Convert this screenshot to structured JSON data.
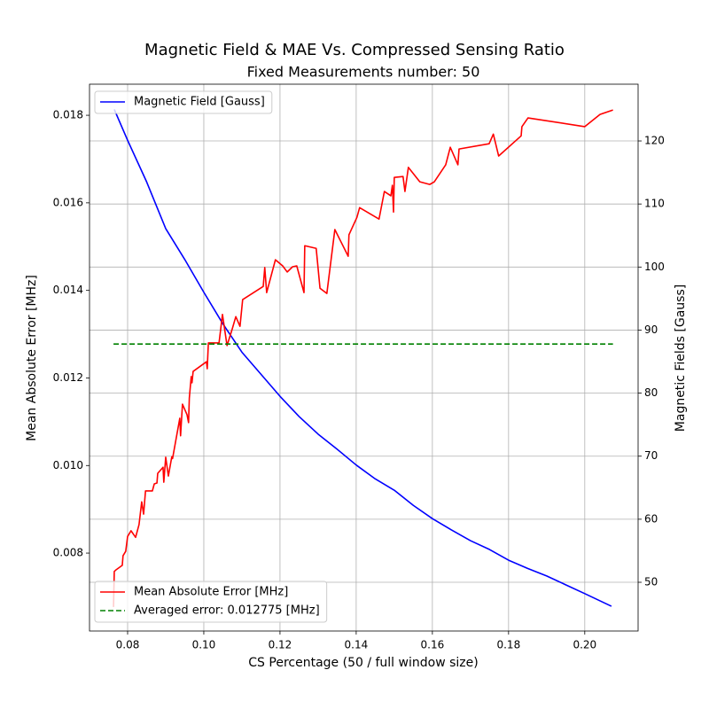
{
  "chart_data": {
    "type": "line",
    "title": "Magnetic Field & MAE Vs. Compressed Sensing Ratio",
    "subtitle": "Fixed Measurements number: 50",
    "xlabel": "CS Percentage (50 / full window size)",
    "ylabel": "Mean Absolute Error [MHz]",
    "y2label": "Magnetic Fields [Gauss]",
    "xlim": [
      0.07,
      0.214
    ],
    "ylim": [
      0.00622,
      0.01871
    ],
    "y2lim": [
      42.27,
      129.0
    ],
    "xticks": [
      0.08,
      {
        "value": 0.1,
        "label": "0.10"
      },
      0.12,
      0.14,
      0.16,
      0.18,
      {
        "value": 0.2,
        "label": "0.20"
      }
    ],
    "yticks": [
      0.008,
      {
        "value": 0.01,
        "label": "0.010"
      },
      0.012,
      0.014,
      0.016,
      0.018
    ],
    "y2ticks": [
      50,
      60,
      70,
      80,
      90,
      100,
      110,
      120
    ],
    "xgrid": true,
    "y2grid": true,
    "series": [
      {
        "name": "Magnetic Field [Gauss]",
        "color": "#0000ff",
        "axis": "y2",
        "linestyle": "solid",
        "legend": "upper left",
        "x": [
          0.0765,
          0.08,
          0.085,
          0.09,
          0.095,
          0.1,
          0.105,
          0.11,
          0.115,
          0.12,
          0.125,
          0.13,
          0.135,
          0.14,
          0.145,
          0.15,
          0.155,
          0.16,
          0.165,
          0.17,
          0.175,
          0.18,
          0.185,
          0.19,
          0.195,
          0.2,
          0.207
        ],
        "values": [
          125,
          120.1,
          113.5,
          106.1,
          101.2,
          96,
          91,
          86.5,
          83,
          79.5,
          76.3,
          73.5,
          71.1,
          68.6,
          66.4,
          64.6,
          62.2,
          60.1,
          58.3,
          56.6,
          55.2,
          53.5,
          52.2,
          51,
          49.6,
          48.2,
          46.2
        ]
      },
      {
        "name": "Mean Absolute Error [MHz]",
        "color": "#ff0000",
        "axis": "y",
        "linestyle": "solid",
        "legend": "lower left",
        "x": [
          0.0763,
          0.0765,
          0.077,
          0.0786,
          0.0788,
          0.0795,
          0.08,
          0.0809,
          0.0821,
          0.083,
          0.0837,
          0.0842,
          0.0847,
          0.0865,
          0.087,
          0.0877,
          0.0879,
          0.0893,
          0.0895,
          0.09,
          0.0907,
          0.0916,
          0.0918,
          0.0937,
          0.0939,
          0.0944,
          0.0956,
          0.096,
          0.0962,
          0.0967,
          0.0969,
          0.0972,
          0.1007,
          0.1009,
          0.1012,
          0.104,
          0.1049,
          0.1061,
          0.1074,
          0.1084,
          0.1095,
          0.1102,
          0.1156,
          0.116,
          0.1165,
          0.1188,
          0.1207,
          0.1219,
          0.1233,
          0.1244,
          0.1263,
          0.1265,
          0.1295,
          0.1305,
          0.1323,
          0.1344,
          0.1379,
          0.1381,
          0.1402,
          0.1409,
          0.146,
          0.1474,
          0.1491,
          0.1495,
          0.1498,
          0.15,
          0.1523,
          0.1528,
          0.1537,
          0.1567,
          0.1593,
          0.1605,
          0.1635,
          0.1647,
          0.1667,
          0.167,
          0.1749,
          0.176,
          0.1774,
          0.1833,
          0.1835,
          0.1851,
          0.2,
          0.204,
          0.2074
        ],
        "values": [
          0.00677,
          0.00758,
          0.00762,
          0.00772,
          0.00794,
          0.00804,
          0.00838,
          0.00851,
          0.00836,
          0.00865,
          0.00917,
          0.00889,
          0.00942,
          0.00942,
          0.00958,
          0.0096,
          0.00982,
          0.00996,
          0.00962,
          0.01019,
          0.00976,
          0.0102,
          0.01016,
          0.01108,
          0.01068,
          0.0114,
          0.01116,
          0.01098,
          0.01154,
          0.01203,
          0.01189,
          0.01215,
          0.01237,
          0.01221,
          0.0128,
          0.0128,
          0.01345,
          0.01274,
          0.0131,
          0.0134,
          0.01318,
          0.01379,
          0.01409,
          0.01452,
          0.01395,
          0.0147,
          0.01456,
          0.01442,
          0.01454,
          0.01456,
          0.01395,
          0.01502,
          0.01496,
          0.01405,
          0.01393,
          0.01539,
          0.01478,
          0.01527,
          0.01567,
          0.01589,
          0.01563,
          0.01626,
          0.01616,
          0.0164,
          0.01579,
          0.01658,
          0.0166,
          0.01626,
          0.01681,
          0.01648,
          0.01642,
          0.01648,
          0.01687,
          0.01727,
          0.01687,
          0.01723,
          0.01735,
          0.01757,
          0.01707,
          0.01753,
          0.01774,
          0.01794,
          0.01774,
          0.01802,
          0.01812
        ]
      },
      {
        "name": "Averaged error: 0.012775 [MHz]",
        "color": "#008000",
        "axis": "y",
        "linestyle": "dashed",
        "legend": "lower left",
        "x": [
          0.0763,
          0.2074
        ],
        "values": [
          0.012775,
          0.012775
        ]
      }
    ]
  }
}
